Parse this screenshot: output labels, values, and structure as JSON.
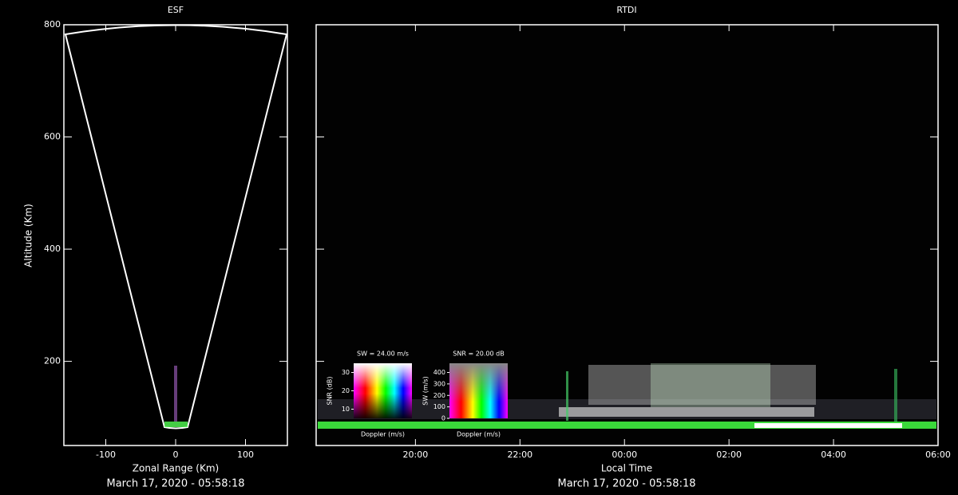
{
  "chart_data": [
    {
      "type": "esf",
      "title": "ESF",
      "xlabel": "Zonal Range (Km)",
      "ylabel": "Altitude (Km)",
      "xlim": [
        -160,
        160
      ],
      "xticks": [
        -100,
        0,
        100
      ],
      "ylim": [
        50,
        800
      ],
      "yticks": [
        200,
        400,
        600,
        800
      ],
      "footer": "March 17, 2020 - 05:58:18"
    },
    {
      "type": "rtdi",
      "title": "RTDI",
      "xlabel": "Local Time",
      "xlim": [
        18.1,
        30
      ],
      "xticks": [
        {
          "value": 20,
          "label": "20:00"
        },
        {
          "value": 22,
          "label": "22:00"
        },
        {
          "value": 24,
          "label": "00:00"
        },
        {
          "value": 26,
          "label": "02:00"
        },
        {
          "value": 28,
          "label": "04:00"
        },
        {
          "value": 30,
          "label": "06:00"
        }
      ],
      "ylim": [
        50,
        800
      ],
      "footer": "March 17, 2020 - 05:58:18",
      "legends": [
        {
          "title": "SW = 24.00 m/s",
          "ylabel": "SNR (dB)",
          "xlabel": "Doppler (m/s)",
          "ylim": [
            5,
            35
          ],
          "yticks": [
            10,
            20,
            30
          ]
        },
        {
          "title": "SNR = 20.00 dB",
          "ylabel": "SW (m/s)",
          "xlabel": "Doppler (m/s)",
          "ylim": [
            0,
            480
          ],
          "yticks": [
            0,
            100,
            200,
            300,
            400
          ]
        }
      ]
    }
  ]
}
